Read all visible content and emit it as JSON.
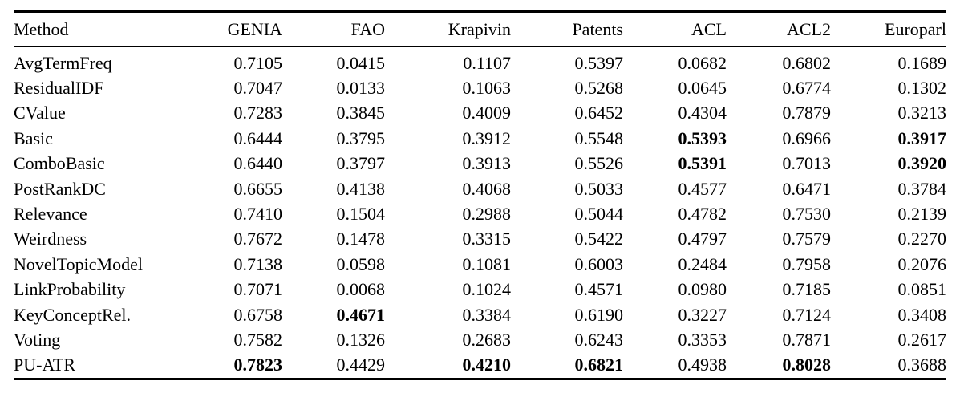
{
  "table": {
    "columns": [
      "Method",
      "GENIA",
      "FAO",
      "Krapivin",
      "Patents",
      "ACL",
      "ACL2",
      "Europarl"
    ],
    "rows": [
      {
        "cells": [
          "AvgTermFreq",
          "0.7105",
          "0.0415",
          "0.1107",
          "0.5397",
          "0.0682",
          "0.6802",
          "0.1689"
        ],
        "bold": []
      },
      {
        "cells": [
          "ResidualIDF",
          "0.7047",
          "0.0133",
          "0.1063",
          "0.5268",
          "0.0645",
          "0.6774",
          "0.1302"
        ],
        "bold": []
      },
      {
        "cells": [
          "CValue",
          "0.7283",
          "0.3845",
          "0.4009",
          "0.6452",
          "0.4304",
          "0.7879",
          "0.3213"
        ],
        "bold": []
      },
      {
        "cells": [
          "Basic",
          "0.6444",
          "0.3795",
          "0.3912",
          "0.5548",
          "0.5393",
          "0.6966",
          "0.3917"
        ],
        "bold": [
          5,
          7
        ]
      },
      {
        "cells": [
          "ComboBasic",
          "0.6440",
          "0.3797",
          "0.3913",
          "0.5526",
          "0.5391",
          "0.7013",
          "0.3920"
        ],
        "bold": [
          5,
          7
        ]
      },
      {
        "cells": [
          "PostRankDC",
          "0.6655",
          "0.4138",
          "0.4068",
          "0.5033",
          "0.4577",
          "0.6471",
          "0.3784"
        ],
        "bold": []
      },
      {
        "cells": [
          "Relevance",
          "0.7410",
          "0.1504",
          "0.2988",
          "0.5044",
          "0.4782",
          "0.7530",
          "0.2139"
        ],
        "bold": []
      },
      {
        "cells": [
          "Weirdness",
          "0.7672",
          "0.1478",
          "0.3315",
          "0.5422",
          "0.4797",
          "0.7579",
          "0.2270"
        ],
        "bold": []
      },
      {
        "cells": [
          "NovelTopicModel",
          "0.7138",
          "0.0598",
          "0.1081",
          "0.6003",
          "0.2484",
          "0.7958",
          "0.2076"
        ],
        "bold": []
      },
      {
        "cells": [
          "LinkProbability",
          "0.7071",
          "0.0068",
          "0.1024",
          "0.4571",
          "0.0980",
          "0.7185",
          "0.0851"
        ],
        "bold": []
      },
      {
        "cells": [
          "KeyConceptRel.",
          "0.6758",
          "0.4671",
          "0.3384",
          "0.6190",
          "0.3227",
          "0.7124",
          "0.3408"
        ],
        "bold": [
          2
        ]
      },
      {
        "cells": [
          "Voting",
          "0.7582",
          "0.1326",
          "0.2683",
          "0.6243",
          "0.3353",
          "0.7871",
          "0.2617"
        ],
        "bold": []
      },
      {
        "cells": [
          "PU-ATR",
          "0.7823",
          "0.4429",
          "0.4210",
          "0.6821",
          "0.4938",
          "0.8028",
          "0.3688"
        ],
        "bold": [
          1,
          3,
          4,
          6
        ]
      }
    ]
  }
}
